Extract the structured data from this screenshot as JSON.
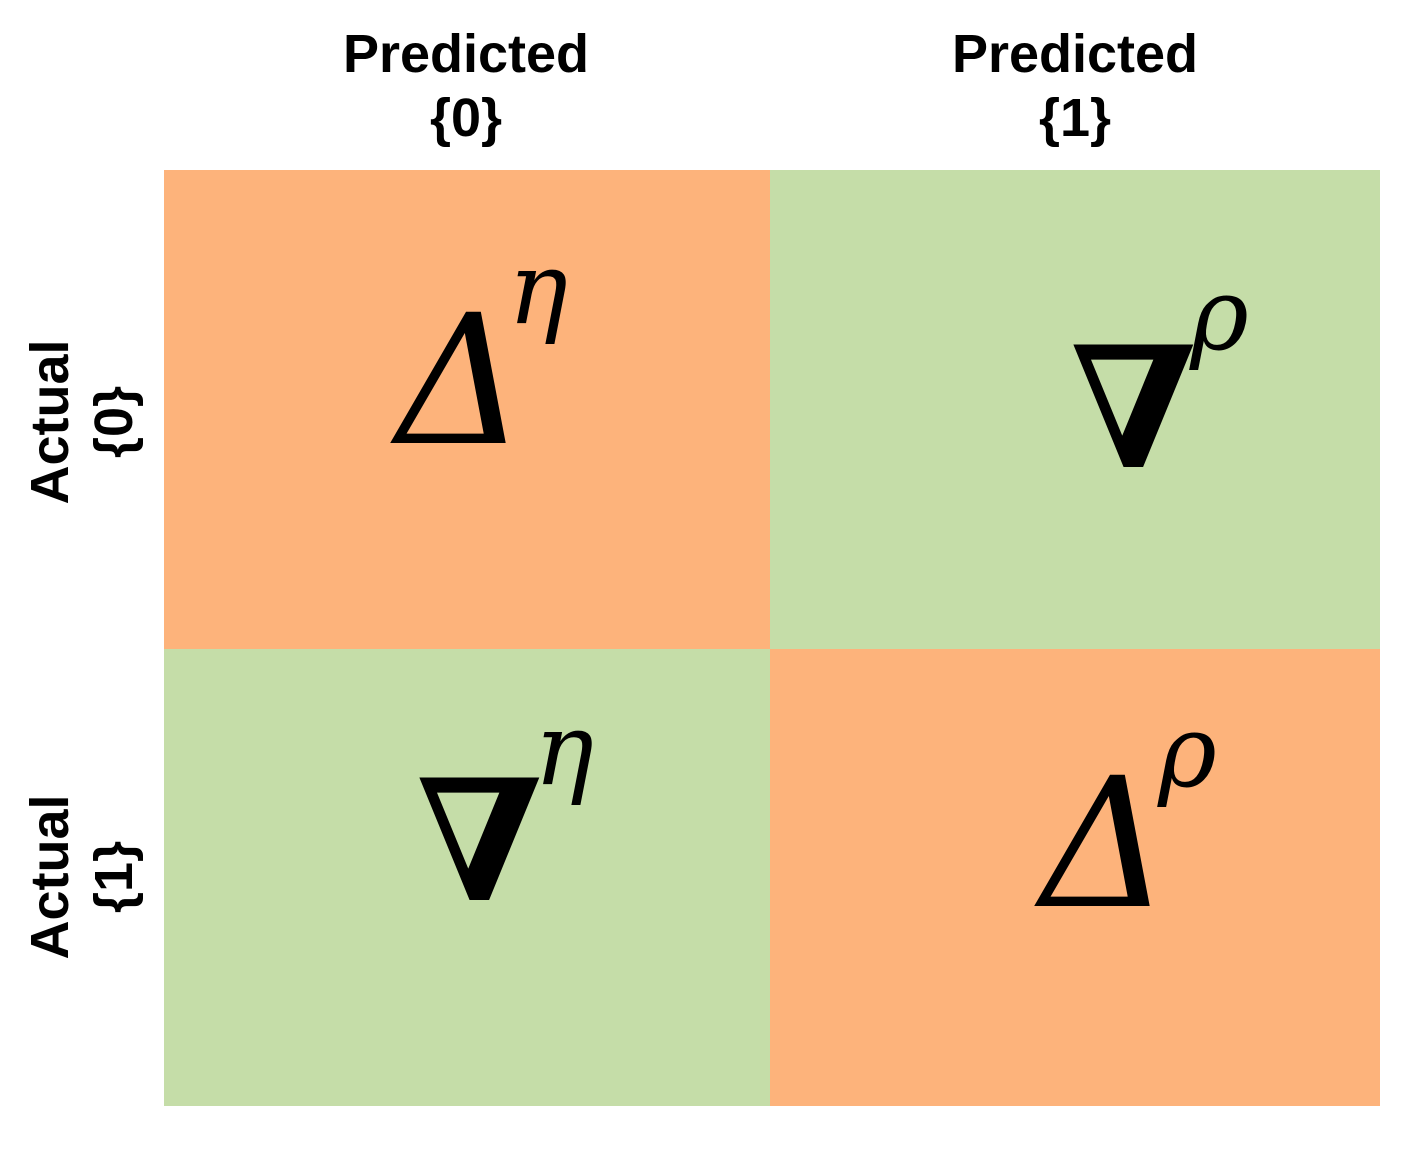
{
  "columns": [
    {
      "line1": "Predicted",
      "line2": "{0}"
    },
    {
      "line1": "Predicted",
      "line2": "{1}"
    }
  ],
  "rows": [
    {
      "line1": "Actual",
      "line2": "{0}"
    },
    {
      "line1": "Actual",
      "line2": "{1}"
    }
  ],
  "cells": [
    [
      {
        "symbol": "Δ",
        "superscript": "η",
        "color": "#fdb37b"
      },
      {
        "symbol": "∇",
        "superscript": "ρ",
        "color": "#c5dda8"
      }
    ],
    [
      {
        "symbol": "∇",
        "superscript": "η",
        "color": "#c5dda8"
      },
      {
        "symbol": "Δ",
        "superscript": "ρ",
        "color": "#fdb37b"
      }
    ]
  ]
}
